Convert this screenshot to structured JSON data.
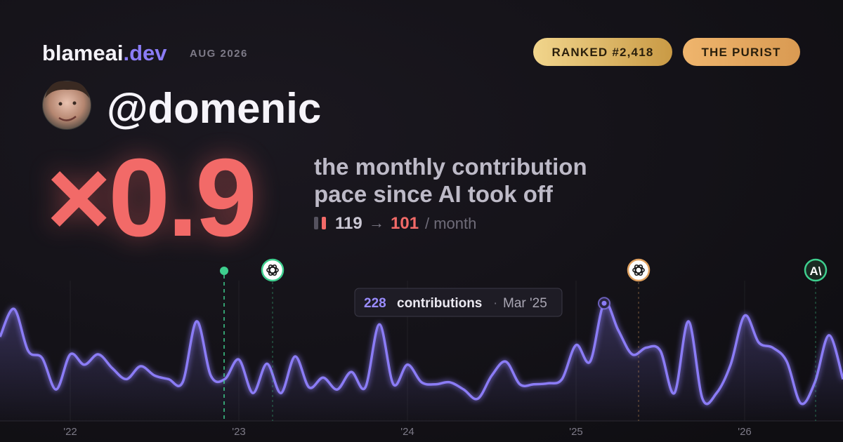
{
  "header": {
    "brand": "blameai",
    "brand_suffix": ".dev",
    "period": "AUG 2026",
    "badges": [
      "RANKED #2,418",
      "THE PURIST"
    ]
  },
  "profile": {
    "handle": "@domenic"
  },
  "hero": {
    "multiplier": "×0.9",
    "caption_lines": [
      "the monthly contribution",
      "pace since AI took off"
    ],
    "before": "119",
    "arrow": "→",
    "after": "101",
    "unit": "/ month"
  },
  "chart_data": {
    "type": "line",
    "categories": [
      null,
      null,
      null,
      null,
      null,
      "'22",
      null,
      null,
      null,
      null,
      null,
      null,
      null,
      null,
      null,
      null,
      null,
      "'23",
      null,
      null,
      null,
      null,
      null,
      null,
      null,
      null,
      null,
      null,
      null,
      "'24",
      null,
      null,
      null,
      null,
      null,
      null,
      null,
      null,
      null,
      null,
      null,
      "'25",
      null,
      null,
      null,
      null,
      null,
      null,
      null,
      null,
      null,
      null,
      null,
      "'26",
      null,
      null,
      null,
      null,
      null,
      null,
      null
    ],
    "series": [
      {
        "color": "#8b7cf6",
        "values": [
          163,
          217,
          136,
          122,
          61,
          129,
          109,
          129,
          102,
          81,
          106,
          88,
          81,
          75,
          193,
          88,
          81,
          119,
          54,
          111,
          54,
          125,
          65,
          84,
          61,
          95,
          65,
          187,
          71,
          109,
          75,
          71,
          75,
          61,
          43,
          88,
          115,
          71,
          71,
          73,
          81,
          147,
          115,
          228,
          176,
          129,
          142,
          136,
          54,
          193,
          43,
          54,
          109,
          204,
          152,
          142,
          115,
          34,
          75,
          166,
          81
        ]
      }
    ],
    "ylim": [
      0,
      280
    ],
    "highlight": {
      "index": 43,
      "label": "contributions",
      "separator": "·",
      "date": "Mar '25"
    },
    "event_icon_text": "A\\"
  }
}
